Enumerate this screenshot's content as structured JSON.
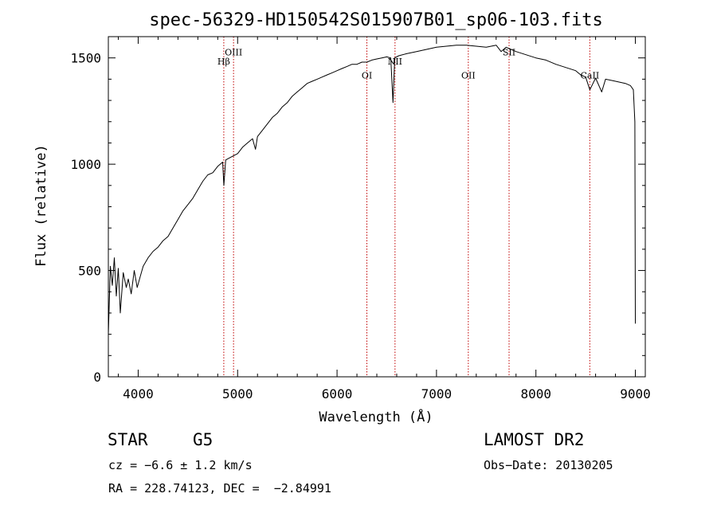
{
  "chart_data": {
    "type": "line",
    "title": "spec-56329-HD150542S015907B01_sp06-103.fits",
    "xlabel": "Wavelength (Å)",
    "ylabel": "Flux (relative)",
    "xlim": [
      3700,
      9100
    ],
    "ylim": [
      0,
      1600
    ],
    "xticks": [
      4000,
      5000,
      6000,
      7000,
      8000,
      9000
    ],
    "yticks": [
      0,
      500,
      1000,
      1500
    ],
    "grid": false,
    "series": [
      {
        "x": [
          3700,
          3720,
          3740,
          3760,
          3780,
          3800,
          3820,
          3850,
          3880,
          3900,
          3930,
          3960,
          3990,
          4020,
          4050,
          4100,
          4150,
          4200,
          4250,
          4300,
          4350,
          4400,
          4450,
          4500,
          4550,
          4600,
          4650,
          4700,
          4750,
          4800,
          4850,
          4862,
          4880,
          4920,
          4960,
          5000,
          5050,
          5100,
          5150,
          5180,
          5200,
          5250,
          5300,
          5350,
          5400,
          5450,
          5500,
          5550,
          5600,
          5650,
          5700,
          5750,
          5800,
          5850,
          5900,
          5950,
          6000,
          6050,
          6100,
          6150,
          6200,
          6250,
          6300,
          6350,
          6400,
          6450,
          6500,
          6540,
          6563,
          6580,
          6620,
          6700,
          6800,
          6900,
          7000,
          7100,
          7200,
          7300,
          7400,
          7500,
          7600,
          7650,
          7700,
          7750,
          7800,
          7900,
          8000,
          8100,
          8200,
          8300,
          8400,
          8450,
          8500,
          8542,
          8600,
          8662,
          8700,
          8800,
          8900,
          8950,
          8980,
          8995,
          9000
        ],
        "y": [
          200,
          520,
          430,
          560,
          380,
          510,
          300,
          490,
          420,
          460,
          390,
          500,
          420,
          470,
          520,
          560,
          590,
          610,
          640,
          660,
          700,
          740,
          780,
          810,
          840,
          880,
          920,
          950,
          960,
          990,
          1010,
          900,
          1020,
          1030,
          1040,
          1050,
          1080,
          1100,
          1120,
          1070,
          1130,
          1160,
          1190,
          1220,
          1240,
          1270,
          1290,
          1320,
          1340,
          1360,
          1380,
          1390,
          1400,
          1410,
          1420,
          1430,
          1440,
          1450,
          1460,
          1470,
          1470,
          1480,
          1480,
          1490,
          1495,
          1500,
          1505,
          1500,
          1290,
          1500,
          1510,
          1520,
          1530,
          1540,
          1550,
          1555,
          1560,
          1560,
          1555,
          1550,
          1560,
          1530,
          1550,
          1540,
          1530,
          1515,
          1500,
          1490,
          1470,
          1455,
          1440,
          1420,
          1410,
          1350,
          1405,
          1340,
          1400,
          1390,
          1380,
          1370,
          1350,
          1200,
          250
        ]
      }
    ],
    "lines": [
      {
        "label": "Hβ",
        "x": 4861,
        "label_y": 1468
      },
      {
        "label": "OIII",
        "x": 4959,
        "label_y": 1512
      },
      {
        "label": "OI",
        "x": 6300,
        "label_y": 1403
      },
      {
        "label": "NII",
        "x": 6583,
        "label_y": 1468
      },
      {
        "label": "OII",
        "x": 7320,
        "label_y": 1403
      },
      {
        "label": "SII",
        "x": 7730,
        "label_y": 1512
      },
      {
        "label": "CaII",
        "x": 8542,
        "label_y": 1403
      }
    ]
  },
  "info": {
    "object_class": "STAR",
    "subclass": "G5",
    "survey": "LAMOST DR2",
    "redshift_line": "cz = −6.6 ± 1.2 km/s",
    "obs_date_line": "Obs−Date: 20130205",
    "coords_line": "RA = 228.74123, DEC =  −2.84991"
  }
}
